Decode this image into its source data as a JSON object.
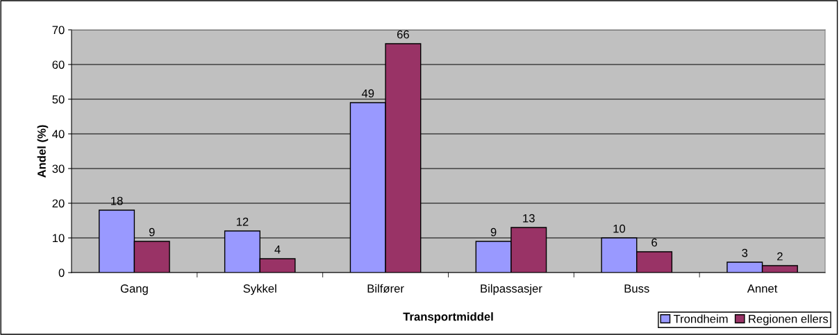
{
  "chart_data": {
    "type": "bar",
    "xlabel": "Transportmiddel",
    "ylabel": "Andel (%)",
    "categories": [
      "Gang",
      "Sykkel",
      "Bilfører",
      "Bilpassasjer",
      "Buss",
      "Annet"
    ],
    "series": [
      {
        "name": "Trondheim",
        "color": "#9999ff",
        "values": [
          18,
          12,
          49,
          9,
          10,
          3
        ]
      },
      {
        "name": "Regionen ellers",
        "color": "#993366",
        "values": [
          9,
          4,
          66,
          13,
          6,
          2
        ]
      }
    ],
    "ylim": [
      0,
      70
    ],
    "yticks": [
      0,
      10,
      20,
      30,
      40,
      50,
      60,
      70
    ],
    "grid": "y",
    "legend": "bottom right",
    "data_labels": true
  }
}
